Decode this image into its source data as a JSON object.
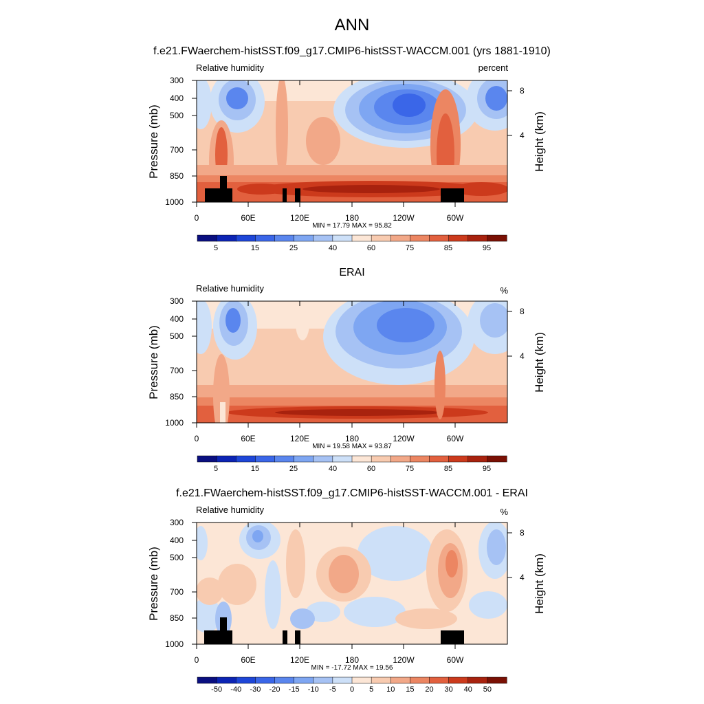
{
  "figure_title": "ANN",
  "chart_data": [
    {
      "type": "heatmap",
      "title": "f.e21.FWaerchem-histSST.f09_g17.CMIP6-histSST-WACCM.001 (yrs 1881-1910)",
      "left_label": "Relative humidity",
      "right_label": "percent",
      "ylabel": "Pressure (mb)",
      "ylabel_right": "Height (km)",
      "y_ticks": [
        "300",
        "400",
        "500",
        "700",
        "850",
        "1000"
      ],
      "y_ticks_right": [
        "8",
        "4"
      ],
      "x_ticks": [
        "0",
        "60E",
        "120E",
        "180",
        "120W",
        "60W"
      ],
      "stats": "MIN = 17.79  MAX = 95.82",
      "colorbar_labels": [
        "5",
        "15",
        "25",
        "40",
        "60",
        "75",
        "85",
        "95"
      ],
      "colorbar_levels": [
        5,
        10,
        15,
        20,
        25,
        30,
        40,
        50,
        60,
        70,
        75,
        80,
        85,
        90,
        95
      ],
      "min": 17.79,
      "max": 95.82
    },
    {
      "type": "heatmap",
      "title": "ERAI",
      "left_label": "Relative humidity",
      "right_label": "%",
      "ylabel": "Pressure (mb)",
      "ylabel_right": "Height (km)",
      "y_ticks": [
        "300",
        "400",
        "500",
        "700",
        "850",
        "1000"
      ],
      "y_ticks_right": [
        "8",
        "4"
      ],
      "x_ticks": [
        "0",
        "60E",
        "120E",
        "180",
        "120W",
        "60W"
      ],
      "stats": "MIN = 19.58  MAX = 93.87",
      "colorbar_labels": [
        "5",
        "15",
        "25",
        "40",
        "60",
        "75",
        "85",
        "95"
      ],
      "colorbar_levels": [
        5,
        10,
        15,
        20,
        25,
        30,
        40,
        50,
        60,
        70,
        75,
        80,
        85,
        90,
        95
      ],
      "min": 19.58,
      "max": 93.87
    },
    {
      "type": "heatmap",
      "title": "f.e21.FWaerchem-histSST.f09_g17.CMIP6-histSST-WACCM.001 - ERAI",
      "left_label": "Relative humidity",
      "right_label": "%",
      "ylabel": "Pressure (mb)",
      "ylabel_right": "Height (km)",
      "y_ticks": [
        "300",
        "400",
        "500",
        "700",
        "850",
        "1000"
      ],
      "y_ticks_right": [
        "8",
        "4"
      ],
      "x_ticks": [
        "0",
        "60E",
        "120E",
        "180",
        "120W",
        "60W"
      ],
      "stats": "MIN = -17.72  MAX = 19.56",
      "colorbar_labels": [
        "-50",
        "-40",
        "-30",
        "-20",
        "-15",
        "-10",
        "-5",
        "0",
        "5",
        "10",
        "15",
        "20",
        "30",
        "40",
        "50"
      ],
      "colorbar_levels": [
        -50,
        -40,
        -30,
        -20,
        -15,
        -10,
        -5,
        0,
        5,
        10,
        15,
        20,
        30,
        40,
        50
      ],
      "min": -17.72,
      "max": 19.56
    }
  ],
  "colormap": [
    "#0a0f80",
    "#0c24b4",
    "#1e46d8",
    "#3a66e8",
    "#5a86ee",
    "#7ea6f2",
    "#a6c2f4",
    "#cde0f8",
    "#fce6d6",
    "#f8cbb0",
    "#f2a888",
    "#ec8662",
    "#e2603e",
    "#cc3a1c",
    "#a8220e",
    "#7a1004"
  ]
}
